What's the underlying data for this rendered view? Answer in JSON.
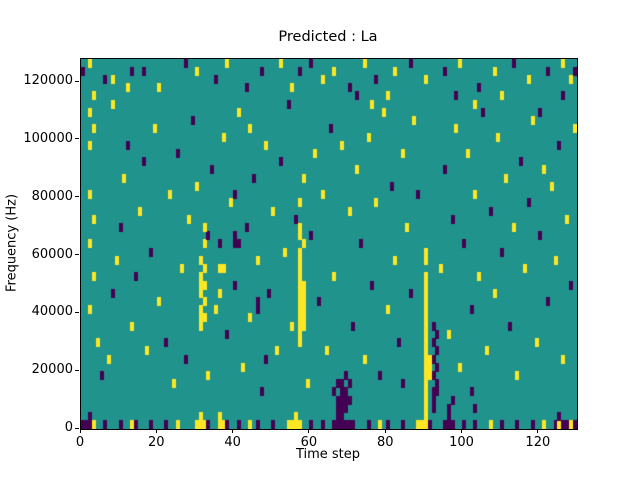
{
  "figure": {
    "title": "Predicted : La",
    "xlabel": "Time step",
    "ylabel": "Frequency (Hz)"
  },
  "chart_data": {
    "type": "heatmap",
    "title": "Predicted : La",
    "xlabel": "Time step",
    "ylabel": "Frequency (Hz)",
    "x_range": [
      0,
      130
    ],
    "y_range": [
      0,
      128000
    ],
    "x_ticks": {
      "values": [
        0,
        20,
        40,
        60,
        80,
        100,
        120
      ],
      "labels": [
        "0",
        "20",
        "40",
        "60",
        "80",
        "100",
        "120"
      ]
    },
    "y_ticks": {
      "values": [
        0,
        20000,
        40000,
        60000,
        80000,
        100000,
        120000
      ],
      "labels": [
        "0",
        "20000",
        "40000",
        "60000",
        "80000",
        "100000",
        "120000"
      ]
    },
    "grid": {
      "cols": 130,
      "rows": 45,
      "hz_per_row": 2844
    },
    "legend": "none",
    "colors": {
      "background": "#20938c",
      "low": "#440154",
      "high": "#fde725"
    },
    "value_encoding": "cells are [time_step, freq_row, value] where value 0=low(purple) 1=high(yellow); all other cells are mid(teal)",
    "cells": [
      [
        0,
        0,
        0
      ],
      [
        1,
        0,
        0
      ],
      [
        2,
        0,
        0
      ],
      [
        3,
        0,
        1
      ],
      [
        6,
        0,
        0
      ],
      [
        10,
        0,
        0
      ],
      [
        13,
        0,
        1
      ],
      [
        14,
        0,
        0
      ],
      [
        18,
        0,
        0
      ],
      [
        22,
        0,
        0
      ],
      [
        25,
        0,
        1
      ],
      [
        30,
        0,
        1
      ],
      [
        31,
        0,
        1
      ],
      [
        32,
        0,
        1
      ],
      [
        33,
        0,
        0
      ],
      [
        36,
        0,
        1
      ],
      [
        37,
        0,
        1
      ],
      [
        38,
        0,
        0
      ],
      [
        41,
        0,
        0
      ],
      [
        44,
        0,
        1
      ],
      [
        46,
        0,
        0
      ],
      [
        50,
        0,
        0
      ],
      [
        54,
        0,
        1
      ],
      [
        55,
        0,
        1
      ],
      [
        56,
        0,
        1
      ],
      [
        57,
        0,
        1
      ],
      [
        60,
        0,
        0
      ],
      [
        63,
        0,
        0
      ],
      [
        66,
        0,
        0
      ],
      [
        67,
        0,
        0
      ],
      [
        68,
        0,
        0
      ],
      [
        69,
        0,
        0
      ],
      [
        70,
        0,
        0
      ],
      [
        71,
        0,
        0
      ],
      [
        75,
        0,
        0
      ],
      [
        78,
        0,
        1
      ],
      [
        80,
        0,
        0
      ],
      [
        84,
        0,
        0
      ],
      [
        88,
        0,
        1
      ],
      [
        89,
        0,
        1
      ],
      [
        90,
        0,
        1
      ],
      [
        91,
        0,
        0
      ],
      [
        95,
        0,
        0
      ],
      [
        96,
        0,
        0
      ],
      [
        97,
        0,
        0
      ],
      [
        100,
        0,
        0
      ],
      [
        103,
        0,
        0
      ],
      [
        107,
        0,
        1
      ],
      [
        110,
        0,
        0
      ],
      [
        114,
        0,
        0
      ],
      [
        118,
        0,
        0
      ],
      [
        121,
        0,
        1
      ],
      [
        124,
        0,
        0
      ],
      [
        125,
        0,
        1
      ],
      [
        126,
        0,
        0
      ],
      [
        127,
        0,
        0
      ],
      [
        128,
        0,
        1
      ],
      [
        129,
        0,
        0
      ],
      [
        2,
        1,
        0
      ],
      [
        31,
        1,
        1
      ],
      [
        36,
        1,
        1
      ],
      [
        56,
        1,
        1
      ],
      [
        67,
        1,
        0
      ],
      [
        68,
        1,
        0
      ],
      [
        90,
        1,
        1
      ],
      [
        96,
        1,
        0
      ],
      [
        125,
        1,
        0
      ],
      [
        57,
        10,
        1
      ],
      [
        57,
        11,
        1
      ],
      [
        57,
        12,
        1
      ],
      [
        57,
        13,
        1
      ],
      [
        57,
        14,
        1
      ],
      [
        57,
        15,
        1
      ],
      [
        57,
        16,
        1
      ],
      [
        57,
        17,
        1
      ],
      [
        57,
        18,
        1
      ],
      [
        57,
        19,
        1
      ],
      [
        57,
        20,
        1
      ],
      [
        57,
        21,
        1
      ],
      [
        58,
        12,
        1
      ],
      [
        58,
        13,
        1
      ],
      [
        58,
        14,
        1
      ],
      [
        58,
        15,
        1
      ],
      [
        58,
        16,
        1
      ],
      [
        58,
        17,
        1
      ],
      [
        58,
        22,
        1
      ],
      [
        57,
        23,
        1
      ],
      [
        57,
        24,
        1
      ],
      [
        57,
        27,
        1
      ],
      [
        58,
        30,
        1
      ],
      [
        56,
        25,
        0
      ],
      [
        90,
        2,
        1
      ],
      [
        90,
        3,
        1
      ],
      [
        90,
        4,
        1
      ],
      [
        90,
        5,
        1
      ],
      [
        90,
        6,
        1
      ],
      [
        90,
        7,
        1
      ],
      [
        90,
        8,
        1
      ],
      [
        90,
        9,
        1
      ],
      [
        90,
        10,
        1
      ],
      [
        90,
        11,
        1
      ],
      [
        90,
        12,
        1
      ],
      [
        90,
        13,
        1
      ],
      [
        90,
        14,
        1
      ],
      [
        90,
        15,
        1
      ],
      [
        90,
        16,
        1
      ],
      [
        90,
        17,
        1
      ],
      [
        90,
        18,
        1
      ],
      [
        91,
        6,
        1
      ],
      [
        91,
        7,
        1
      ],
      [
        91,
        8,
        1
      ],
      [
        90,
        20,
        1
      ],
      [
        90,
        21,
        1
      ],
      [
        92,
        2,
        0
      ],
      [
        92,
        3,
        0
      ],
      [
        92,
        4,
        0
      ],
      [
        93,
        4,
        0
      ],
      [
        93,
        5,
        0
      ],
      [
        92,
        6,
        0
      ],
      [
        93,
        7,
        0
      ],
      [
        92,
        8,
        0
      ],
      [
        93,
        9,
        0
      ],
      [
        92,
        10,
        0
      ],
      [
        93,
        11,
        0
      ],
      [
        92,
        12,
        0
      ],
      [
        67,
        2,
        0
      ],
      [
        68,
        2,
        0
      ],
      [
        69,
        2,
        0
      ],
      [
        67,
        3,
        0
      ],
      [
        68,
        3,
        0
      ],
      [
        69,
        3,
        0
      ],
      [
        70,
        3,
        0
      ],
      [
        68,
        4,
        0
      ],
      [
        69,
        4,
        0
      ],
      [
        67,
        5,
        0
      ],
      [
        68,
        5,
        0
      ],
      [
        66,
        4,
        0
      ],
      [
        70,
        5,
        0
      ],
      [
        69,
        6,
        0
      ],
      [
        31,
        12,
        1
      ],
      [
        31,
        13,
        1
      ],
      [
        32,
        13,
        1
      ],
      [
        31,
        14,
        1
      ],
      [
        32,
        15,
        1
      ],
      [
        31,
        16,
        1
      ],
      [
        31,
        17,
        1
      ],
      [
        32,
        17,
        1
      ],
      [
        31,
        18,
        1
      ],
      [
        32,
        19,
        1
      ],
      [
        31,
        20,
        1
      ],
      [
        32,
        22,
        1
      ],
      [
        33,
        23,
        0
      ],
      [
        32,
        24,
        1
      ],
      [
        2,
        34,
        1
      ],
      [
        3,
        36,
        1
      ],
      [
        2,
        38,
        1
      ],
      [
        3,
        40,
        1
      ],
      [
        2,
        28,
        1
      ],
      [
        3,
        25,
        1
      ],
      [
        2,
        22,
        1
      ],
      [
        3,
        18,
        1
      ],
      [
        2,
        14,
        1
      ],
      [
        4,
        10,
        1
      ],
      [
        5,
        6,
        0
      ],
      [
        7,
        8,
        1
      ],
      [
        8,
        16,
        0
      ],
      [
        9,
        20,
        1
      ],
      [
        10,
        24,
        0
      ],
      [
        11,
        30,
        1
      ],
      [
        12,
        34,
        0
      ],
      [
        13,
        12,
        1
      ],
      [
        14,
        18,
        0
      ],
      [
        15,
        26,
        1
      ],
      [
        16,
        32,
        0
      ],
      [
        17,
        9,
        1
      ],
      [
        18,
        21,
        0
      ],
      [
        19,
        36,
        1
      ],
      [
        20,
        15,
        1
      ],
      [
        8,
        39,
        1
      ],
      [
        6,
        42,
        0
      ],
      [
        12,
        41,
        1
      ],
      [
        16,
        43,
        0
      ],
      [
        0,
        43,
        0
      ],
      [
        2,
        44,
        1
      ],
      [
        8,
        42,
        1
      ],
      [
        13,
        43,
        0
      ],
      [
        20,
        41,
        1
      ],
      [
        27,
        44,
        0
      ],
      [
        30,
        43,
        1
      ],
      [
        35,
        42,
        0
      ],
      [
        38,
        44,
        1
      ],
      [
        43,
        41,
        0
      ],
      [
        47,
        43,
        0
      ],
      [
        52,
        44,
        1
      ],
      [
        55,
        41,
        1
      ],
      [
        57,
        43,
        0
      ],
      [
        60,
        44,
        0
      ],
      [
        63,
        42,
        1
      ],
      [
        66,
        43,
        1
      ],
      [
        70,
        41,
        0
      ],
      [
        74,
        44,
        1
      ],
      [
        77,
        42,
        0
      ],
      [
        82,
        43,
        1
      ],
      [
        86,
        44,
        0
      ],
      [
        90,
        42,
        1
      ],
      [
        95,
        43,
        0
      ],
      [
        99,
        44,
        1
      ],
      [
        104,
        41,
        0
      ],
      [
        108,
        43,
        1
      ],
      [
        113,
        44,
        0
      ],
      [
        117,
        42,
        1
      ],
      [
        122,
        43,
        0
      ],
      [
        126,
        44,
        1
      ],
      [
        128,
        42,
        1
      ],
      [
        129,
        43,
        0
      ],
      [
        22,
        10,
        0
      ],
      [
        23,
        28,
        1
      ],
      [
        24,
        5,
        1
      ],
      [
        25,
        33,
        0
      ],
      [
        26,
        19,
        1
      ],
      [
        27,
        8,
        0
      ],
      [
        28,
        25,
        1
      ],
      [
        29,
        37,
        0
      ],
      [
        30,
        29,
        1
      ],
      [
        33,
        6,
        1
      ],
      [
        34,
        31,
        0
      ],
      [
        35,
        14,
        1
      ],
      [
        36,
        22,
        0
      ],
      [
        37,
        35,
        1
      ],
      [
        38,
        11,
        0
      ],
      [
        39,
        27,
        1
      ],
      [
        40,
        17,
        0
      ],
      [
        41,
        38,
        1
      ],
      [
        42,
        7,
        1
      ],
      [
        43,
        24,
        0
      ],
      [
        44,
        13,
        1
      ],
      [
        45,
        30,
        0
      ],
      [
        46,
        20,
        1
      ],
      [
        47,
        4,
        0
      ],
      [
        48,
        34,
        1
      ],
      [
        49,
        16,
        0
      ],
      [
        50,
        26,
        1
      ],
      [
        51,
        9,
        1
      ],
      [
        52,
        32,
        0
      ],
      [
        53,
        21,
        1
      ],
      [
        54,
        39,
        0
      ],
      [
        55,
        12,
        1
      ],
      [
        40,
        28,
        0
      ],
      [
        44,
        36,
        1
      ],
      [
        36,
        16,
        1
      ],
      [
        48,
        8,
        0
      ],
      [
        40,
        22,
        0
      ],
      [
        41,
        22,
        0
      ],
      [
        40,
        23,
        0
      ],
      [
        46,
        14,
        0
      ],
      [
        46,
        15,
        0
      ],
      [
        36,
        19,
        1
      ],
      [
        37,
        19,
        1
      ],
      [
        59,
        5,
        1
      ],
      [
        60,
        23,
        0
      ],
      [
        61,
        33,
        1
      ],
      [
        62,
        15,
        0
      ],
      [
        63,
        28,
        1
      ],
      [
        64,
        9,
        1
      ],
      [
        65,
        36,
        0
      ],
      [
        66,
        18,
        1
      ],
      [
        70,
        26,
        1
      ],
      [
        71,
        12,
        0
      ],
      [
        72,
        31,
        1
      ],
      [
        73,
        22,
        0
      ],
      [
        74,
        8,
        1
      ],
      [
        75,
        35,
        1
      ],
      [
        76,
        17,
        0
      ],
      [
        77,
        27,
        1
      ],
      [
        78,
        6,
        0
      ],
      [
        79,
        38,
        1
      ],
      [
        80,
        14,
        1
      ],
      [
        81,
        29,
        0
      ],
      [
        82,
        20,
        1
      ],
      [
        83,
        10,
        0
      ],
      [
        84,
        33,
        1
      ],
      [
        85,
        24,
        1
      ],
      [
        86,
        16,
        0
      ],
      [
        87,
        37,
        1
      ],
      [
        88,
        28,
        0
      ],
      [
        68,
        34,
        1
      ],
      [
        72,
        40,
        0
      ],
      [
        76,
        39,
        1
      ],
      [
        80,
        40,
        1
      ],
      [
        84,
        5,
        0
      ],
      [
        96,
        2,
        0
      ],
      [
        97,
        3,
        0
      ],
      [
        102,
        4,
        0
      ],
      [
        103,
        2,
        0
      ],
      [
        94,
        19,
        1
      ],
      [
        95,
        31,
        0
      ],
      [
        96,
        11,
        1
      ],
      [
        97,
        25,
        0
      ],
      [
        98,
        36,
        1
      ],
      [
        99,
        7,
        1
      ],
      [
        100,
        22,
        0
      ],
      [
        101,
        33,
        1
      ],
      [
        102,
        14,
        0
      ],
      [
        103,
        28,
        1
      ],
      [
        104,
        18,
        1
      ],
      [
        105,
        38,
        0
      ],
      [
        106,
        9,
        1
      ],
      [
        107,
        26,
        0
      ],
      [
        108,
        16,
        1
      ],
      [
        109,
        35,
        1
      ],
      [
        110,
        21,
        0
      ],
      [
        111,
        30,
        1
      ],
      [
        112,
        12,
        0
      ],
      [
        113,
        24,
        1
      ],
      [
        114,
        6,
        1
      ],
      [
        115,
        32,
        0
      ],
      [
        116,
        19,
        1
      ],
      [
        117,
        27,
        0
      ],
      [
        118,
        37,
        1
      ],
      [
        119,
        10,
        1
      ],
      [
        120,
        23,
        0
      ],
      [
        121,
        31,
        1
      ],
      [
        122,
        15,
        0
      ],
      [
        123,
        29,
        1
      ],
      [
        124,
        20,
        1
      ],
      [
        125,
        34,
        0
      ],
      [
        126,
        8,
        1
      ],
      [
        127,
        25,
        1
      ],
      [
        128,
        17,
        0
      ],
      [
        129,
        36,
        1
      ],
      [
        98,
        40,
        0
      ],
      [
        103,
        39,
        1
      ],
      [
        110,
        40,
        1
      ],
      [
        120,
        38,
        0
      ],
      [
        126,
        40,
        0
      ]
    ]
  }
}
